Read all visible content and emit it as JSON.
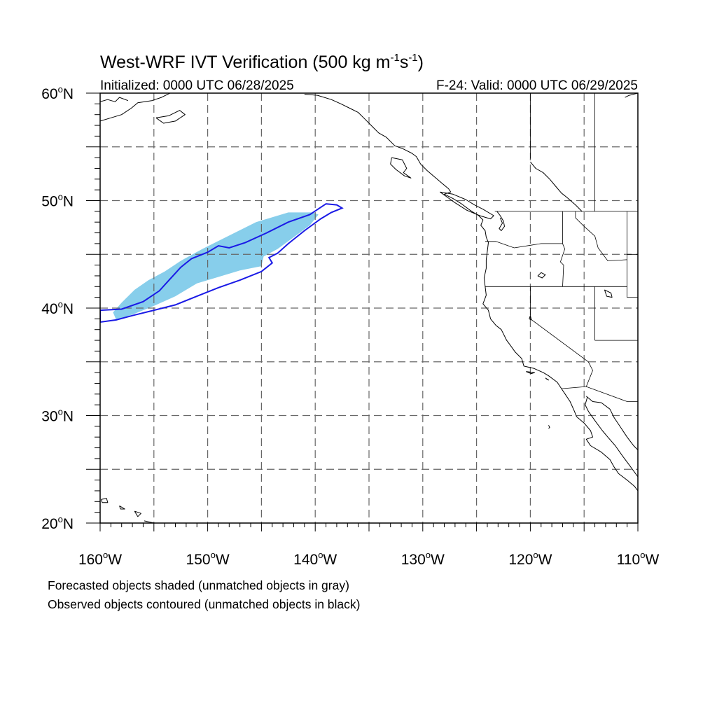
{
  "title": {
    "main": "West-WRF IVT Verification (500 kg m",
    "unit_exp1": "-1",
    "unit_mid": "s",
    "unit_exp2": "-1",
    "close": ")"
  },
  "subtitle_left": "Initialized: 0000 UTC 06/28/2025",
  "subtitle_right": "F-24: Valid: 0000 UTC 06/29/2025",
  "footnotes": [
    "Forecasted objects shaded (unmatched objects in gray)",
    "Observed objects contoured (unmatched objects in black)"
  ],
  "colors": {
    "forecast_fill": "#87ceeb",
    "observed_contour": "#1a1ae6",
    "coastline": "#000000",
    "gridline": "#666666"
  },
  "chart_data": {
    "type": "map",
    "projection": "cylindrical-equidistant",
    "lon_range": [
      -160,
      -110
    ],
    "lat_range": [
      20,
      60
    ],
    "grid": "dashed every 5 degrees",
    "lon_ticks": [
      {
        "value": -160,
        "label": "160"
      },
      {
        "value": -150,
        "label": "150"
      },
      {
        "value": -140,
        "label": "140"
      },
      {
        "value": -130,
        "label": "130"
      },
      {
        "value": -120,
        "label": "120"
      },
      {
        "value": -110,
        "label": "110"
      }
    ],
    "lon_suffix": "W",
    "lat_ticks": [
      {
        "value": 20,
        "label": "20"
      },
      {
        "value": 30,
        "label": "30"
      },
      {
        "value": 40,
        "label": "40"
      },
      {
        "value": 50,
        "label": "50"
      },
      {
        "value": 60,
        "label": "60"
      }
    ],
    "lat_suffix": "N",
    "forecast_object": {
      "polygon_lonlat": [
        [
          -158.5,
          38.9
        ],
        [
          -157.0,
          39.4
        ],
        [
          -155.0,
          40.2
        ],
        [
          -153.0,
          41.1
        ],
        [
          -151.0,
          42.3
        ],
        [
          -149.0,
          42.9
        ],
        [
          -147.0,
          43.5
        ],
        [
          -145.0,
          43.9
        ],
        [
          -144.8,
          44.8
        ],
        [
          -143.5,
          45.5
        ],
        [
          -142.0,
          46.6
        ],
        [
          -140.5,
          47.7
        ],
        [
          -139.7,
          48.7
        ],
        [
          -140.2,
          48.9
        ],
        [
          -142.5,
          48.9
        ],
        [
          -144.5,
          48.3
        ],
        [
          -145.5,
          48.0
        ],
        [
          -146.5,
          47.5
        ],
        [
          -148.5,
          46.5
        ],
        [
          -150.5,
          45.5
        ],
        [
          -152.5,
          44.4
        ],
        [
          -154.0,
          43.4
        ],
        [
          -155.5,
          42.6
        ],
        [
          -156.8,
          41.7
        ],
        [
          -158.0,
          40.5
        ],
        [
          -158.8,
          39.6
        ]
      ]
    },
    "observed_object": {
      "polygon_lonlat": [
        [
          -160.0,
          39.8
        ],
        [
          -158.0,
          39.9
        ],
        [
          -156.0,
          40.6
        ],
        [
          -154.5,
          41.6
        ],
        [
          -153.5,
          42.7
        ],
        [
          -152.5,
          43.8
        ],
        [
          -151.5,
          44.6
        ],
        [
          -150.0,
          45.2
        ],
        [
          -149.0,
          45.8
        ],
        [
          -148.0,
          45.6
        ],
        [
          -146.5,
          46.1
        ],
        [
          -144.5,
          47.0
        ],
        [
          -142.5,
          48.0
        ],
        [
          -140.5,
          48.7
        ],
        [
          -139.0,
          49.7
        ],
        [
          -138.0,
          49.6
        ],
        [
          -137.5,
          49.3
        ],
        [
          -138.5,
          48.9
        ],
        [
          -139.5,
          48.3
        ],
        [
          -141.0,
          47.2
        ],
        [
          -142.5,
          46.0
        ],
        [
          -143.5,
          45.1
        ],
        [
          -144.3,
          44.7
        ],
        [
          -144.0,
          44.2
        ],
        [
          -145.0,
          43.4
        ],
        [
          -147.0,
          42.6
        ],
        [
          -149.0,
          41.9
        ],
        [
          -151.0,
          41.1
        ],
        [
          -153.0,
          40.3
        ],
        [
          -155.0,
          39.8
        ],
        [
          -157.0,
          39.3
        ],
        [
          -158.5,
          38.9
        ],
        [
          -160.0,
          38.7
        ]
      ]
    },
    "coastlines": [
      [
        [
          -160,
          57.4
        ],
        [
          -159,
          57.7
        ],
        [
          -158,
          58.0
        ],
        [
          -157.1,
          58.6
        ],
        [
          -156.5,
          59.1
        ],
        [
          -155.2,
          59.3
        ],
        [
          -154.3,
          59.6
        ],
        [
          -153.5,
          60.0
        ]
      ],
      [
        [
          -160,
          59.2
        ],
        [
          -159.3,
          59.4
        ],
        [
          -158.6,
          59.2
        ],
        [
          -158.2,
          59.6
        ],
        [
          -157.4,
          59.3
        ]
      ],
      [
        [
          -154.8,
          57.7
        ],
        [
          -153.6,
          57.9
        ],
        [
          -152.6,
          58.4
        ],
        [
          -152.1,
          58.0
        ],
        [
          -153.0,
          57.4
        ],
        [
          -154.1,
          57.2
        ],
        [
          -154.8,
          57.7
        ]
      ],
      [
        [
          -141,
          59.9
        ],
        [
          -139.8,
          59.8
        ],
        [
          -138.5,
          59.4
        ],
        [
          -137.6,
          59.0
        ],
        [
          -136.6,
          58.5
        ],
        [
          -136.0,
          58.2
        ],
        [
          -135.4,
          57.6
        ],
        [
          -134.6,
          56.8
        ],
        [
          -134.1,
          56.3
        ],
        [
          -133.4,
          55.9
        ],
        [
          -132.6,
          55.1
        ],
        [
          -131.8,
          54.8
        ],
        [
          -131.0,
          54.4
        ],
        [
          -130.6,
          54.1
        ],
        [
          -130.2,
          53.4
        ],
        [
          -129.6,
          52.8
        ],
        [
          -128.9,
          52.2
        ],
        [
          -128.2,
          51.6
        ],
        [
          -127.6,
          51.1
        ],
        [
          -127.4,
          50.8
        ],
        [
          -128.0,
          50.6
        ],
        [
          -127.2,
          50.2
        ],
        [
          -126.4,
          49.7
        ],
        [
          -125.6,
          49.1
        ],
        [
          -124.8,
          48.6
        ],
        [
          -124.4,
          48.2
        ],
        [
          -124.6,
          47.7
        ],
        [
          -124.2,
          47.2
        ],
        [
          -124.1,
          46.6
        ],
        [
          -123.9,
          46.1
        ],
        [
          -124.0,
          45.3
        ],
        [
          -124.1,
          44.5
        ],
        [
          -124.1,
          43.7
        ],
        [
          -124.3,
          42.8
        ],
        [
          -124.2,
          42.0
        ],
        [
          -124.1,
          41.2
        ],
        [
          -124.4,
          40.4
        ],
        [
          -123.9,
          39.8
        ],
        [
          -123.7,
          39.0
        ],
        [
          -123.2,
          38.4
        ],
        [
          -122.7,
          38.0
        ],
        [
          -122.5,
          37.6
        ],
        [
          -122.2,
          37.0
        ],
        [
          -121.9,
          36.6
        ],
        [
          -121.4,
          35.9
        ],
        [
          -120.8,
          35.3
        ],
        [
          -120.6,
          34.6
        ],
        [
          -119.7,
          34.4
        ],
        [
          -118.8,
          34.0
        ],
        [
          -118.3,
          33.7
        ],
        [
          -117.5,
          33.1
        ],
        [
          -117.1,
          32.5
        ],
        [
          -116.7,
          31.9
        ],
        [
          -116.3,
          31.3
        ],
        [
          -115.9,
          30.4
        ],
        [
          -115.7,
          29.9
        ],
        [
          -115.0,
          29.3
        ],
        [
          -114.4,
          28.6
        ],
        [
          -114.2,
          28.0
        ],
        [
          -114.8,
          27.8
        ],
        [
          -114.4,
          27.2
        ],
        [
          -113.4,
          26.6
        ],
        [
          -112.6,
          25.9
        ],
        [
          -112.2,
          25.2
        ],
        [
          -111.8,
          24.6
        ],
        [
          -111.0,
          24.0
        ],
        [
          -110.3,
          23.4
        ],
        [
          -110.0,
          23.0
        ]
      ],
      [
        [
          -128.4,
          50.8
        ],
        [
          -127.2,
          50.6
        ],
        [
          -126.0,
          50.1
        ],
        [
          -125.2,
          49.6
        ],
        [
          -124.4,
          49.2
        ],
        [
          -123.4,
          48.6
        ],
        [
          -123.7,
          48.3
        ],
        [
          -124.7,
          48.6
        ],
        [
          -125.9,
          49.1
        ],
        [
          -127.0,
          49.8
        ],
        [
          -128.4,
          50.8
        ]
      ],
      [
        [
          -132.9,
          54.0
        ],
        [
          -131.9,
          53.8
        ],
        [
          -131.5,
          53.0
        ],
        [
          -131.8,
          52.6
        ],
        [
          -131.1,
          52.1
        ],
        [
          -131.7,
          52.3
        ],
        [
          -132.5,
          52.9
        ],
        [
          -133.0,
          53.4
        ],
        [
          -132.9,
          54.0
        ]
      ],
      [
        [
          -123.1,
          49.0
        ],
        [
          -122.8,
          48.6
        ],
        [
          -122.5,
          48.1
        ],
        [
          -122.4,
          47.6
        ],
        [
          -122.7,
          47.2
        ],
        [
          -122.9,
          47.4
        ],
        [
          -122.6,
          47.9
        ],
        [
          -122.8,
          48.4
        ]
      ],
      [
        [
          -114.7,
          31.7
        ],
        [
          -114.9,
          31.0
        ],
        [
          -114.6,
          30.4
        ],
        [
          -113.9,
          29.4
        ],
        [
          -113.3,
          28.6
        ],
        [
          -112.8,
          28.0
        ],
        [
          -112.1,
          27.2
        ],
        [
          -111.4,
          26.2
        ],
        [
          -110.8,
          25.4
        ],
        [
          -110.0,
          24.3
        ]
      ],
      [
        [
          -114.8,
          31.8
        ],
        [
          -114.2,
          31.3
        ],
        [
          -113.4,
          31.2
        ],
        [
          -112.6,
          30.6
        ],
        [
          -112.2,
          29.8
        ],
        [
          -111.6,
          28.9
        ],
        [
          -111.0,
          28.0
        ],
        [
          -110.4,
          27.2
        ],
        [
          -110.0,
          26.8
        ]
      ],
      [
        [
          -119.0,
          43.3
        ],
        [
          -118.6,
          43.1
        ],
        [
          -118.9,
          42.8
        ],
        [
          -119.3,
          43.0
        ],
        [
          -119.0,
          43.3
        ]
      ],
      [
        [
          -113.1,
          41.7
        ],
        [
          -112.5,
          41.4
        ],
        [
          -112.4,
          41.0
        ],
        [
          -112.9,
          41.1
        ],
        [
          -113.1,
          41.7
        ]
      ],
      [
        [
          -120.0,
          39.3
        ],
        [
          -119.9,
          38.9
        ],
        [
          -120.1,
          39.0
        ],
        [
          -120.0,
          39.3
        ]
      ],
      [
        [
          -111.2,
          59.6
        ],
        [
          -110.8,
          59.8
        ],
        [
          -110.0,
          60.0
        ]
      ],
      [
        [
          -120.0,
          53.6
        ],
        [
          -119.5,
          53.0
        ],
        [
          -118.8,
          52.6
        ],
        [
          -118.2,
          52.0
        ],
        [
          -117.7,
          51.4
        ],
        [
          -117.1,
          50.7
        ],
        [
          -116.6,
          50.3
        ],
        [
          -115.8,
          49.6
        ],
        [
          -115.2,
          49.0
        ]
      ],
      [
        [
          -159.9,
          22.2
        ],
        [
          -159.4,
          22.3
        ],
        [
          -159.3,
          21.9
        ],
        [
          -159.8,
          21.9
        ],
        [
          -159.9,
          22.2
        ]
      ],
      [
        [
          -158.2,
          21.6
        ],
        [
          -157.7,
          21.3
        ],
        [
          -158.1,
          21.3
        ],
        [
          -158.2,
          21.6
        ]
      ],
      [
        [
          -156.8,
          21.1
        ],
        [
          -156.2,
          20.9
        ],
        [
          -156.5,
          20.6
        ],
        [
          -156.8,
          21.1
        ]
      ],
      [
        [
          -155.9,
          20.2
        ],
        [
          -155.0,
          20.0
        ],
        [
          -154.8,
          19.8
        ],
        [
          -155.3,
          19.6
        ]
      ],
      [
        [
          -118.6,
          33.5
        ],
        [
          -118.3,
          33.3
        ],
        [
          -118.5,
          33.4
        ]
      ],
      [
        [
          -120.4,
          34.1
        ],
        [
          -119.6,
          34.0
        ],
        [
          -119.9,
          33.9
        ],
        [
          -120.4,
          34.1
        ]
      ],
      [
        [
          -118.3,
          29.1
        ],
        [
          -118.2,
          28.9
        ],
        [
          -118.3,
          28.8
        ]
      ]
    ],
    "boundaries": [
      [
        [
          -123.3,
          49.0
        ],
        [
          -110.0,
          49.0
        ]
      ],
      [
        [
          -124.2,
          46.2
        ],
        [
          -123.2,
          46.2
        ],
        [
          -121.5,
          45.6
        ],
        [
          -119.0,
          46.0
        ],
        [
          -117.0,
          46.0
        ]
      ],
      [
        [
          -117.0,
          49.0
        ],
        [
          -117.0,
          46.0
        ],
        [
          -116.8,
          45.5
        ],
        [
          -117.2,
          44.3
        ],
        [
          -116.9,
          44.0
        ],
        [
          -117.0,
          42.0
        ]
      ],
      [
        [
          -124.2,
          42.0
        ],
        [
          -111.0,
          42.0
        ]
      ],
      [
        [
          -120.0,
          42.0
        ],
        [
          -120.0,
          39.0
        ],
        [
          -114.6,
          35.0
        ]
      ],
      [
        [
          -114.0,
          42.0
        ],
        [
          -114.0,
          37.0
        ]
      ],
      [
        [
          -114.0,
          37.0
        ],
        [
          -110.0,
          37.0
        ]
      ],
      [
        [
          -114.6,
          35.0
        ],
        [
          -114.2,
          34.2
        ],
        [
          -114.8,
          32.7
        ]
      ],
      [
        [
          -117.1,
          32.5
        ],
        [
          -114.8,
          32.7
        ],
        [
          -111.0,
          31.3
        ],
        [
          -110.0,
          31.3
        ]
      ],
      [
        [
          -111.0,
          49.0
        ],
        [
          -111.0,
          45.0
        ],
        [
          -110.0,
          45.0
        ]
      ],
      [
        [
          -111.0,
          45.0
        ],
        [
          -111.0,
          41.0
        ],
        [
          -110.0,
          41.0
        ]
      ],
      [
        [
          -115.8,
          49.0
        ],
        [
          -115.8,
          48.4
        ],
        [
          -115.0,
          47.6
        ],
        [
          -114.0,
          46.7
        ],
        [
          -113.7,
          45.6
        ],
        [
          -112.8,
          44.4
        ],
        [
          -111.0,
          44.5
        ]
      ],
      [
        [
          -114.0,
          60.0
        ],
        [
          -114.0,
          49.0
        ]
      ],
      [
        [
          -120.0,
          60.0
        ],
        [
          -120.0,
          53.9
        ]
      ]
    ]
  }
}
